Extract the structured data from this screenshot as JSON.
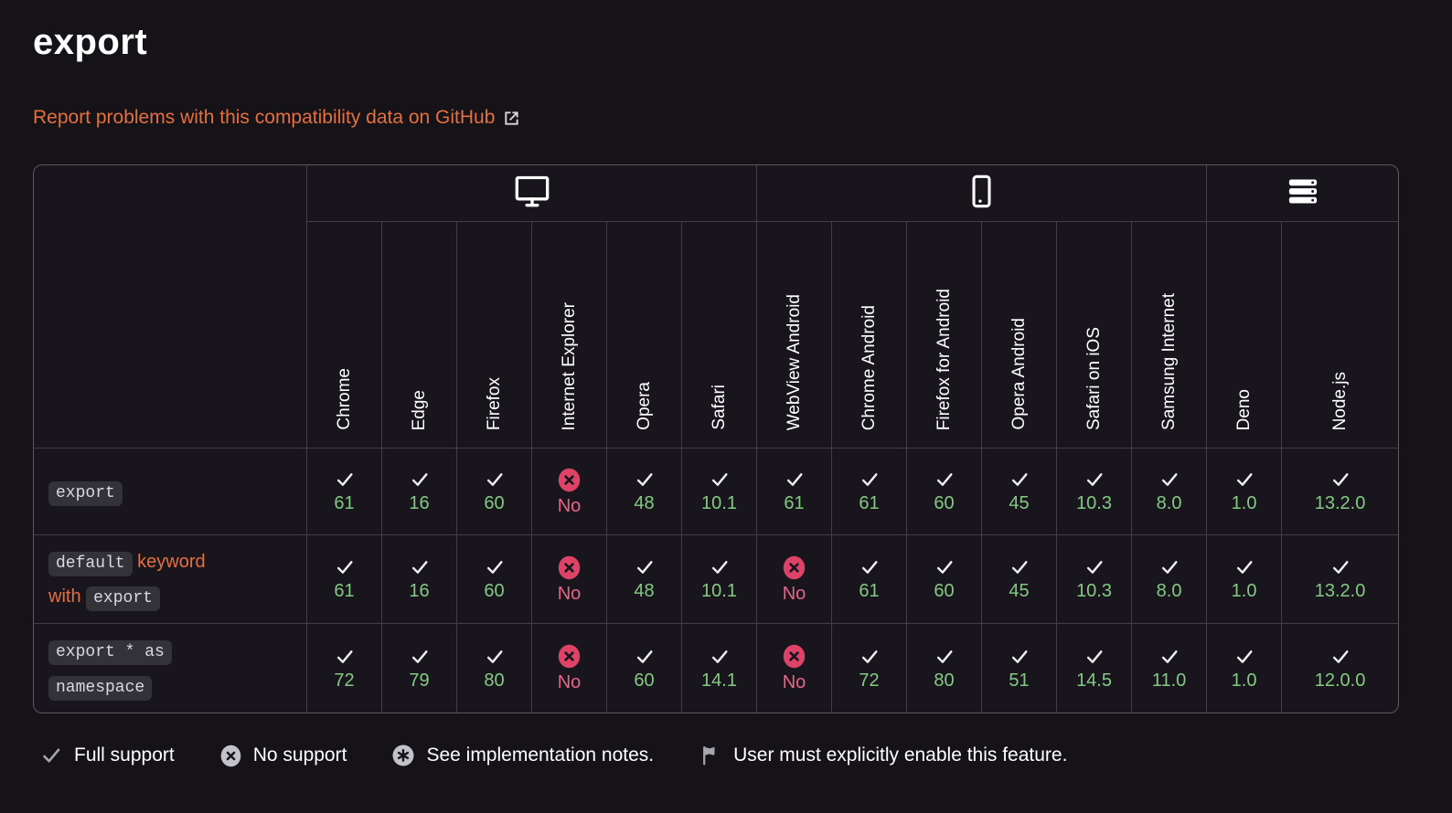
{
  "colors": {
    "accent": "#e4703f",
    "support-yes": "#84c984",
    "support-no": "#dd4368",
    "support-no-text": "#e7658b",
    "code-bg": "#343239",
    "code-text": "#dad9de",
    "page-bg": "#151318",
    "table-border": "#5a5961",
    "cell-border": "#403e46"
  },
  "page": {
    "title": "export",
    "report_link": {
      "text": "Report problems with this compatibility data on GitHub",
      "icon": "external-link-icon"
    }
  },
  "table": {
    "groups": [
      {
        "id": "desktop",
        "icon": "desktop-icon",
        "span": 6
      },
      {
        "id": "mobile",
        "icon": "mobile-icon",
        "span": 6
      },
      {
        "id": "server",
        "icon": "server-icon",
        "span": 2
      }
    ],
    "browsers": [
      "Chrome",
      "Edge",
      "Firefox",
      "Internet Explorer",
      "Opera",
      "Safari",
      "WebView Android",
      "Chrome Android",
      "Firefox for Android",
      "Opera Android",
      "Safari on iOS",
      "Samsung Internet",
      "Deno",
      "Node.js"
    ],
    "rows": [
      {
        "label_parts": [
          {
            "type": "code",
            "text": "export"
          }
        ],
        "is_link": false,
        "support": [
          {
            "status": "yes",
            "version": "61"
          },
          {
            "status": "yes",
            "version": "16"
          },
          {
            "status": "yes",
            "version": "60"
          },
          {
            "status": "no",
            "version": "No"
          },
          {
            "status": "yes",
            "version": "48"
          },
          {
            "status": "yes",
            "version": "10.1"
          },
          {
            "status": "yes",
            "version": "61"
          },
          {
            "status": "yes",
            "version": "61"
          },
          {
            "status": "yes",
            "version": "60"
          },
          {
            "status": "yes",
            "version": "45"
          },
          {
            "status": "yes",
            "version": "10.3"
          },
          {
            "status": "yes",
            "version": "8.0"
          },
          {
            "status": "yes",
            "version": "1.0"
          },
          {
            "status": "yes",
            "version": "13.2.0"
          }
        ]
      },
      {
        "label_parts": [
          {
            "type": "code",
            "text": "default"
          },
          {
            "type": "text",
            "text": " keyword with "
          },
          {
            "type": "code",
            "text": "export"
          }
        ],
        "is_link": true,
        "support": [
          {
            "status": "yes",
            "version": "61"
          },
          {
            "status": "yes",
            "version": "16"
          },
          {
            "status": "yes",
            "version": "60"
          },
          {
            "status": "no",
            "version": "No"
          },
          {
            "status": "yes",
            "version": "48"
          },
          {
            "status": "yes",
            "version": "10.1"
          },
          {
            "status": "no",
            "version": "No"
          },
          {
            "status": "yes",
            "version": "61"
          },
          {
            "status": "yes",
            "version": "60"
          },
          {
            "status": "yes",
            "version": "45"
          },
          {
            "status": "yes",
            "version": "10.3"
          },
          {
            "status": "yes",
            "version": "8.0"
          },
          {
            "status": "yes",
            "version": "1.0"
          },
          {
            "status": "yes",
            "version": "13.2.0"
          }
        ]
      },
      {
        "label_parts": [
          {
            "type": "code",
            "text": "export * as namespace"
          }
        ],
        "is_link": true,
        "support": [
          {
            "status": "yes",
            "version": "72"
          },
          {
            "status": "yes",
            "version": "79"
          },
          {
            "status": "yes",
            "version": "80"
          },
          {
            "status": "no",
            "version": "No"
          },
          {
            "status": "yes",
            "version": "60"
          },
          {
            "status": "yes",
            "version": "14.1"
          },
          {
            "status": "no",
            "version": "No"
          },
          {
            "status": "yes",
            "version": "72"
          },
          {
            "status": "yes",
            "version": "80"
          },
          {
            "status": "yes",
            "version": "51"
          },
          {
            "status": "yes",
            "version": "14.5"
          },
          {
            "status": "yes",
            "version": "11.0"
          },
          {
            "status": "yes",
            "version": "1.0"
          },
          {
            "status": "yes",
            "version": "12.0.0"
          }
        ]
      }
    ]
  },
  "legend": [
    {
      "icon": "check-icon",
      "label": "Full support"
    },
    {
      "icon": "cross-circle-icon",
      "label": "No support"
    },
    {
      "icon": "asterisk-circle-icon",
      "label": "See implementation notes."
    },
    {
      "icon": "flag-icon",
      "label": "User must explicitly enable this feature."
    }
  ]
}
